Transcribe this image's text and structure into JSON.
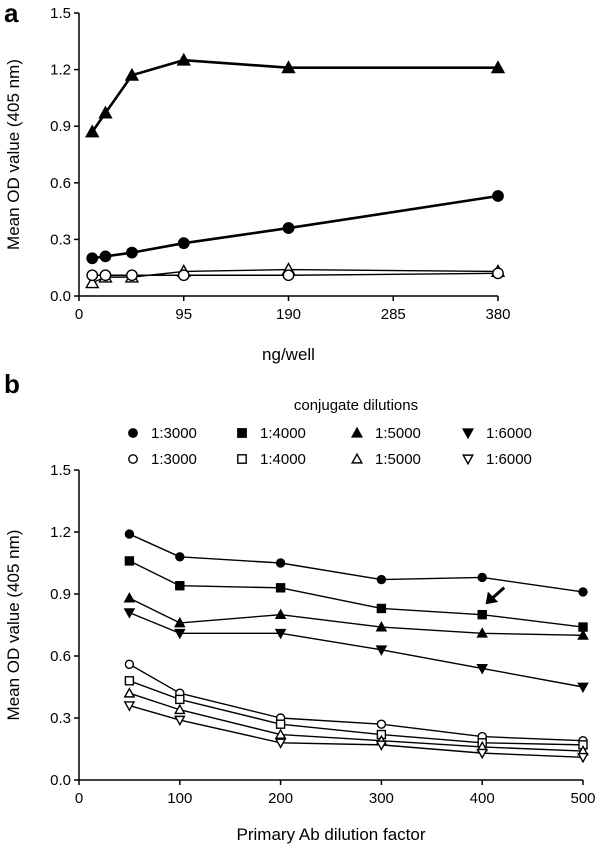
{
  "chart_data": [
    {
      "panel": "a",
      "type": "line",
      "xlabel": "ng/well",
      "ylabel": "Mean OD value (405 nm)",
      "xlim": [
        0,
        380
      ],
      "ylim": [
        0,
        1.5
      ],
      "xticks": [
        0,
        95,
        190,
        285,
        380
      ],
      "yticks": [
        0.0,
        0.3,
        0.6,
        0.9,
        1.2,
        1.5
      ],
      "xtick_labels": [
        "0",
        "95",
        "190",
        "285",
        "380"
      ],
      "ytick_labels": [
        "0.0",
        "0.3",
        "0.6",
        "0.9",
        "1.2",
        "1.5"
      ],
      "grid": false,
      "series": [
        {
          "marker": "triangle",
          "filled": true,
          "line": "thick",
          "x": [
            12,
            24,
            48,
            95,
            190,
            380
          ],
          "y": [
            0.87,
            0.97,
            1.17,
            1.25,
            1.21,
            1.21
          ]
        },
        {
          "marker": "circle",
          "filled": true,
          "line": "thick",
          "x": [
            12,
            24,
            48,
            95,
            190,
            380
          ],
          "y": [
            0.2,
            0.21,
            0.23,
            0.28,
            0.36,
            0.53
          ]
        },
        {
          "marker": "triangle",
          "filled": false,
          "line": "thin",
          "x": [
            12,
            24,
            48,
            95,
            190,
            380
          ],
          "y": [
            0.07,
            0.1,
            0.1,
            0.13,
            0.14,
            0.13
          ]
        },
        {
          "marker": "circle",
          "filled": false,
          "line": "thin",
          "x": [
            12,
            24,
            48,
            95,
            190,
            380
          ],
          "y": [
            0.11,
            0.11,
            0.11,
            0.11,
            0.11,
            0.12
          ]
        }
      ]
    },
    {
      "panel": "b",
      "type": "line",
      "xlabel": "Primary Ab dilution factor",
      "ylabel": "Mean OD value (405 nm)",
      "xlim": [
        0,
        500
      ],
      "ylim": [
        0,
        1.5
      ],
      "xticks": [
        0,
        100,
        200,
        300,
        400,
        500
      ],
      "yticks": [
        0.0,
        0.3,
        0.6,
        0.9,
        1.2,
        1.5
      ],
      "xtick_labels": [
        "0",
        "100",
        "200",
        "300",
        "400",
        "500"
      ],
      "ytick_labels": [
        "0.0",
        "0.3",
        "0.6",
        "0.9",
        "1.2",
        "1.5"
      ],
      "grid": false,
      "legend_title": "conjugate dilutions",
      "legend_placement": "top",
      "annotation": {
        "type": "arrow",
        "points_to": {
          "x": 400,
          "y": 0.8
        }
      },
      "series": [
        {
          "name": "1:3000",
          "marker": "circle",
          "filled": true,
          "x": [
            50,
            100,
            200,
            300,
            400,
            500
          ],
          "y": [
            1.19,
            1.08,
            1.05,
            0.97,
            0.98,
            0.91
          ]
        },
        {
          "name": "1:4000",
          "marker": "square",
          "filled": true,
          "x": [
            50,
            100,
            200,
            300,
            400,
            500
          ],
          "y": [
            1.06,
            0.94,
            0.93,
            0.83,
            0.8,
            0.74
          ]
        },
        {
          "name": "1:5000",
          "marker": "triangle",
          "filled": true,
          "x": [
            50,
            100,
            200,
            300,
            400,
            500
          ],
          "y": [
            0.88,
            0.76,
            0.8,
            0.74,
            0.71,
            0.7
          ]
        },
        {
          "name": "1:6000",
          "marker": "triangle-down",
          "filled": true,
          "x": [
            50,
            100,
            200,
            300,
            400,
            500
          ],
          "y": [
            0.81,
            0.71,
            0.71,
            0.63,
            0.54,
            0.45
          ]
        },
        {
          "name": "1:3000",
          "marker": "circle",
          "filled": false,
          "x": [
            50,
            100,
            200,
            300,
            400,
            500
          ],
          "y": [
            0.56,
            0.42,
            0.3,
            0.27,
            0.21,
            0.19
          ]
        },
        {
          "name": "1:4000",
          "marker": "square",
          "filled": false,
          "x": [
            50,
            100,
            200,
            300,
            400,
            500
          ],
          "y": [
            0.48,
            0.39,
            0.27,
            0.22,
            0.18,
            0.17
          ]
        },
        {
          "name": "1:5000",
          "marker": "triangle",
          "filled": false,
          "x": [
            50,
            100,
            200,
            300,
            400,
            500
          ],
          "y": [
            0.42,
            0.34,
            0.22,
            0.19,
            0.16,
            0.14
          ]
        },
        {
          "name": "1:6000",
          "marker": "triangle-down",
          "filled": false,
          "x": [
            50,
            100,
            200,
            300,
            400,
            500
          ],
          "y": [
            0.36,
            0.29,
            0.18,
            0.17,
            0.13,
            0.11
          ]
        }
      ]
    }
  ],
  "colors": {
    "ink": "#000000",
    "background": "#ffffff"
  }
}
